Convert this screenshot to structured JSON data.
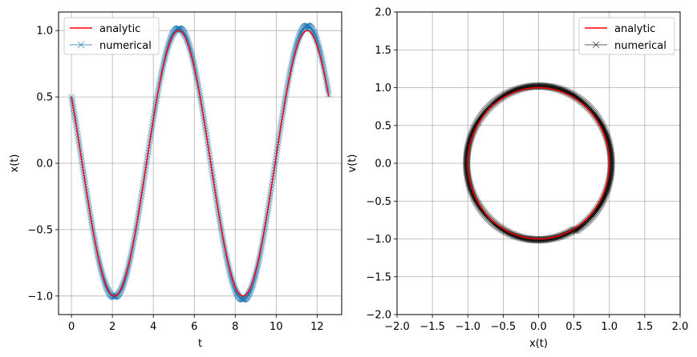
{
  "chart_data": [
    {
      "type": "line",
      "xlabel": "t",
      "ylabel": "x(t)",
      "xlim": [
        -0.63,
        13.2
      ],
      "ylim": [
        -1.14,
        1.14
      ],
      "xticks": [
        0,
        2,
        4,
        6,
        8,
        10,
        12
      ],
      "xtick_labels": [
        "0",
        "2",
        "4",
        "6",
        "8",
        "10",
        "12"
      ],
      "yticks": [
        -1.0,
        -0.5,
        0.0,
        0.5,
        1.0
      ],
      "ytick_labels": [
        "−1.0",
        "−0.5",
        "0.0",
        "0.5",
        "1.0"
      ],
      "grid": true,
      "legend": "upper left",
      "t_range": [
        0,
        12.566
      ],
      "series": [
        {
          "name": "analytic",
          "color": "#ff0000",
          "marker": "none",
          "formula": "x(t) = sin(t + 2.618)",
          "amplitude": 1.0,
          "phase": 2.618
        },
        {
          "name": "numerical",
          "color": "#1f77b4",
          "marker": "x",
          "formula": "x(t) = A(t) sin(t + 2.618), A growing from 1.0 to 1.04",
          "amplitude_start": 1.0,
          "amplitude_end": 1.04,
          "phase": 2.618
        }
      ]
    },
    {
      "type": "line",
      "xlabel": "x(t)",
      "ylabel": "v(t)",
      "xlim": [
        -2.0,
        2.0
      ],
      "ylim": [
        -2.0,
        2.0
      ],
      "xticks": [
        -2.0,
        -1.5,
        -1.0,
        -0.5,
        0.0,
        0.5,
        1.0,
        1.5,
        2.0
      ],
      "xtick_labels": [
        "−2.0",
        "−1.5",
        "−1.0",
        "−0.5",
        "0.0",
        "0.5",
        "1.0",
        "1.5",
        "2.0"
      ],
      "yticks": [
        -2.0,
        -1.5,
        -1.0,
        -0.5,
        0.0,
        0.5,
        1.0,
        1.5,
        2.0
      ],
      "ytick_labels": [
        "−2.0",
        "−1.5",
        "−1.0",
        "−0.5",
        "0.0",
        "0.5",
        "1.0",
        "1.5",
        "2.0"
      ],
      "grid": true,
      "legend": "upper right",
      "series": [
        {
          "name": "analytic",
          "color": "#ff0000",
          "marker": "none",
          "shape": "circle of radius 1.0 centred at origin"
        },
        {
          "name": "numerical",
          "color": "#000000",
          "marker": "x",
          "shape": "slowly expanding spiral, radius 1.0 to 1.04"
        }
      ]
    }
  ]
}
